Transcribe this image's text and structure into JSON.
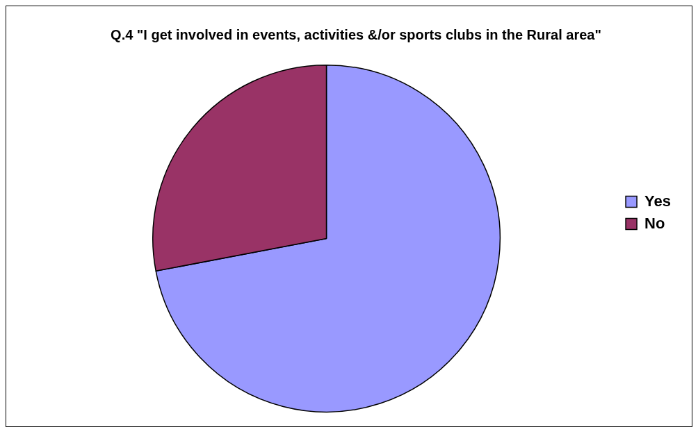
{
  "chart_data": {
    "type": "pie",
    "title": "Q.4 \"I get involved in events, activities &/or sports clubs in the Rural area\"",
    "categories": [
      "Yes",
      "No"
    ],
    "values": [
      72,
      28
    ],
    "colors": [
      "#9999ff",
      "#993366"
    ],
    "legend": "right"
  }
}
